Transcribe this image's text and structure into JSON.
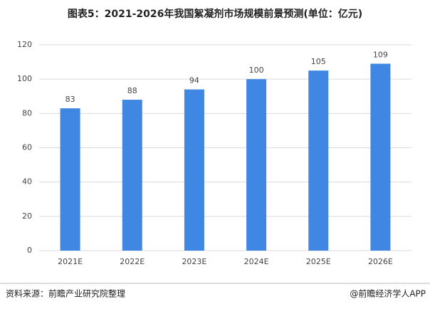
{
  "chart_data": {
    "type": "bar",
    "title": "图表5：2021-2026年我国絮凝剂市场规模前景预测(单位：亿元)",
    "categories": [
      "2021E",
      "2022E",
      "2023E",
      "2024E",
      "2025E",
      "2026E"
    ],
    "values": [
      83,
      88,
      94,
      100,
      105,
      109
    ],
    "color": "#3f87e2",
    "ylim": [
      0,
      120
    ],
    "yticks": [
      0,
      20,
      40,
      60,
      80,
      100,
      120
    ],
    "grid": true,
    "data_labels": true
  },
  "footer": {
    "source": "资料来源：前瞻产业研究院整理",
    "credit": "@前瞻经济学人APP"
  }
}
